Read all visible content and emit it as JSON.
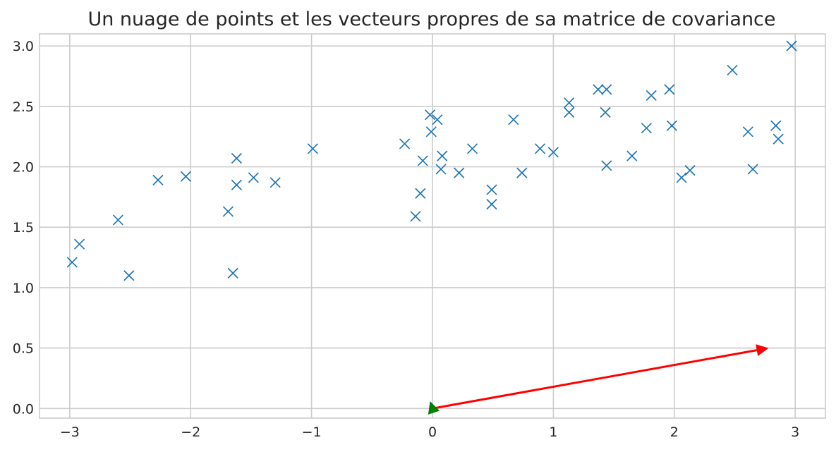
{
  "chart_data": {
    "type": "scatter",
    "title": "Un nuage de points et les vecteurs propres de sa matrice de covariance",
    "xlabel": "",
    "ylabel": "",
    "xlim": [
      -3.25,
      3.25
    ],
    "ylim": [
      -0.08,
      3.1
    ],
    "grid": true,
    "x_ticks": [
      -3,
      -2,
      -1,
      0,
      1,
      2,
      3
    ],
    "x_tick_labels": [
      "−3",
      "−2",
      "−1",
      "0",
      "1",
      "2",
      "3"
    ],
    "y_ticks": [
      0.0,
      0.5,
      1.0,
      1.5,
      2.0,
      2.5,
      3.0
    ],
    "y_tick_labels": [
      "0.0",
      "0.5",
      "1.0",
      "1.5",
      "2.0",
      "2.5",
      "3.0"
    ],
    "series": [
      {
        "marker": "x",
        "color": "#1f77b4",
        "points": [
          [
            -2.98,
            1.21
          ],
          [
            -2.92,
            1.36
          ],
          [
            -2.6,
            1.56
          ],
          [
            -2.51,
            1.1
          ],
          [
            -2.27,
            1.89
          ],
          [
            -2.04,
            1.92
          ],
          [
            -1.69,
            1.63
          ],
          [
            -1.65,
            1.12
          ],
          [
            -1.62,
            2.07
          ],
          [
            -1.62,
            1.85
          ],
          [
            -1.48,
            1.91
          ],
          [
            -1.3,
            1.87
          ],
          [
            -0.99,
            2.15
          ],
          [
            -0.23,
            2.19
          ],
          [
            -0.14,
            1.59
          ],
          [
            -0.1,
            1.78
          ],
          [
            -0.08,
            2.05
          ],
          [
            -0.02,
            2.43
          ],
          [
            -0.01,
            2.29
          ],
          [
            0.04,
            2.39
          ],
          [
            0.07,
            1.98
          ],
          [
            0.08,
            2.09
          ],
          [
            0.22,
            1.95
          ],
          [
            0.33,
            2.15
          ],
          [
            0.49,
            1.81
          ],
          [
            0.49,
            1.69
          ],
          [
            0.67,
            2.39
          ],
          [
            0.74,
            1.95
          ],
          [
            0.89,
            2.15
          ],
          [
            1.0,
            2.12
          ],
          [
            1.13,
            2.45
          ],
          [
            1.13,
            2.53
          ],
          [
            1.37,
            2.64
          ],
          [
            1.44,
            2.64
          ],
          [
            1.43,
            2.45
          ],
          [
            1.44,
            2.01
          ],
          [
            1.65,
            2.09
          ],
          [
            1.77,
            2.32
          ],
          [
            1.81,
            2.59
          ],
          [
            1.96,
            2.64
          ],
          [
            1.98,
            2.34
          ],
          [
            2.06,
            1.91
          ],
          [
            2.13,
            1.97
          ],
          [
            2.48,
            2.8
          ],
          [
            2.61,
            2.29
          ],
          [
            2.65,
            1.98
          ],
          [
            2.84,
            2.34
          ],
          [
            2.86,
            2.23
          ],
          [
            2.97,
            3.0
          ]
        ]
      }
    ],
    "vectors": [
      {
        "color": "#ff0000",
        "x": 0.0,
        "y": 0.0,
        "dx": 2.78,
        "dy": 0.5
      },
      {
        "color": "#008000",
        "x": 0.0,
        "y": 0.0,
        "dx": -0.02,
        "dy": 0.06
      }
    ],
    "colors": {
      "grid": "#cccccc",
      "frame": "#cccccc",
      "text": "#262626",
      "background": "#ffffff"
    }
  }
}
